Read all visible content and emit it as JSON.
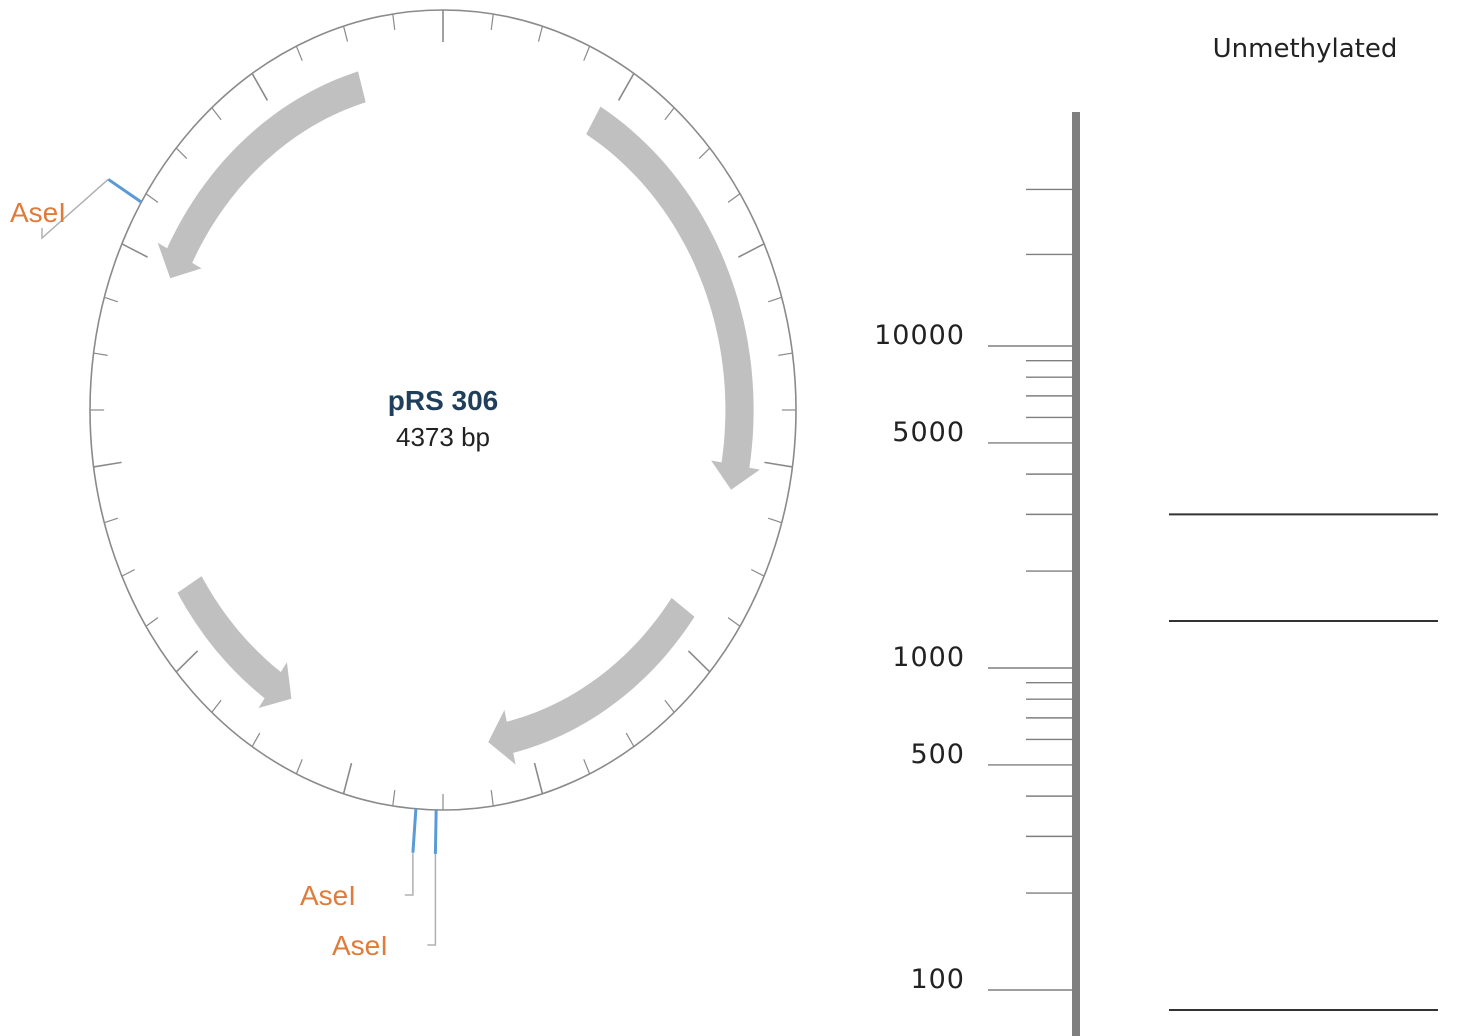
{
  "plasmid": {
    "name": "pRS 306",
    "size_label": "4373 bp",
    "total_bp": 4373,
    "sites": [
      {
        "label": "AseI",
        "position_bp": 3660
      },
      {
        "label": "AseI",
        "position_bp": 2240
      },
      {
        "label": "AseI",
        "position_bp": 2200
      }
    ],
    "features": [
      {
        "start_bp": 3560,
        "end_bp": 4180,
        "direction": "reverse"
      },
      {
        "start_bp": 370,
        "end_bp": 1260,
        "direction": "forward"
      },
      {
        "start_bp": 1530,
        "end_bp": 2080,
        "direction": "forward"
      },
      {
        "start_bp": 2560,
        "end_bp": 2900,
        "direction": "reverse"
      }
    ]
  },
  "gel": {
    "lane_label": "Unmethylated",
    "ladder_labels": [
      {
        "text": "10000",
        "bp": 10000
      },
      {
        "text": "5000",
        "bp": 5000
      },
      {
        "text": "1000",
        "bp": 1000
      },
      {
        "text": "500",
        "bp": 500
      },
      {
        "text": "100",
        "bp": 100
      }
    ],
    "ladder_bands_bp": [
      20000,
      15000,
      10000,
      9000,
      8000,
      7000,
      6000,
      5000,
      4000,
      3000,
      2000,
      1000,
      900,
      800,
      700,
      600,
      500,
      400,
      300,
      200,
      100
    ],
    "sample_bands_bp": [
      3000,
      1400,
      100
    ]
  },
  "colors": {
    "circle": "#8a8a8a",
    "feature": "#c0c0c0",
    "site_line": "#5a9bd5",
    "site_label": "#e07b39",
    "title": "#1f3f5c",
    "text": "#222222",
    "gel_axis": "#7f7f7f"
  }
}
